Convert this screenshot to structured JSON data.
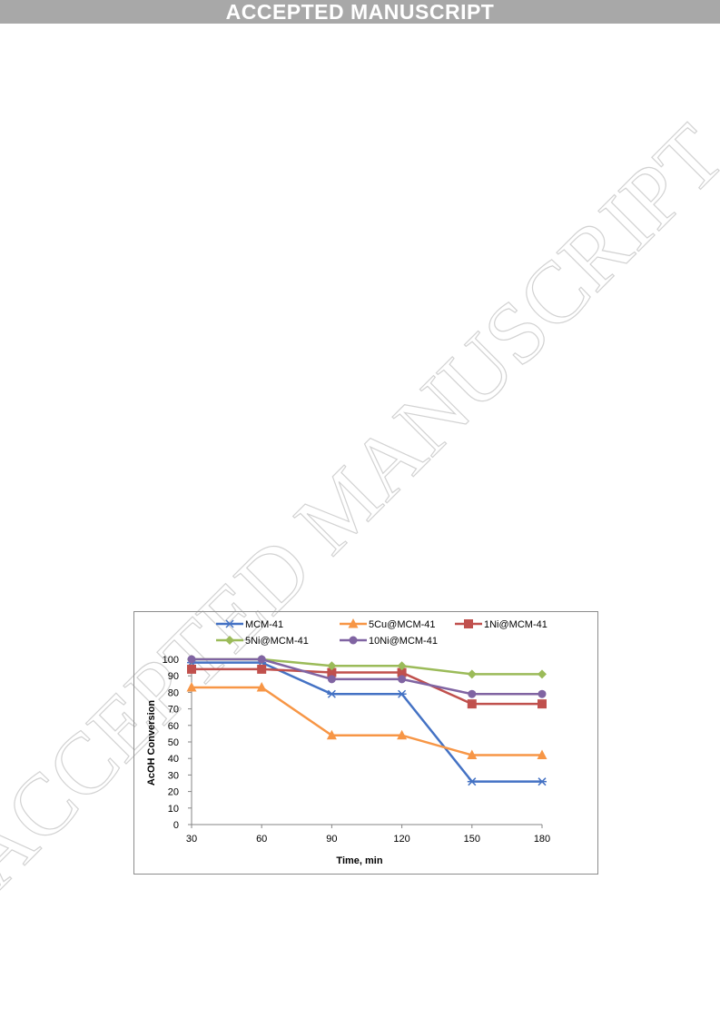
{
  "banner": {
    "text": "ACCEPTED MANUSCRIPT"
  },
  "watermark": {
    "text": "ACCEPTED MANUSCRIPT"
  },
  "colors": {
    "watermark": "#d2d2d2",
    "banner_bg": "#a8a8a8",
    "axis": "#868686",
    "frame": "#8c8c8c"
  },
  "chart_data": {
    "type": "line",
    "title": "",
    "xlabel": "Time, min",
    "ylabel": "AcOH Conversion",
    "x": [
      30,
      60,
      90,
      120,
      150,
      180
    ],
    "ylim": [
      0,
      100
    ],
    "yticks": [
      0,
      10,
      20,
      30,
      40,
      50,
      60,
      70,
      80,
      90,
      100
    ],
    "grid": false,
    "legend_position": "top",
    "series": [
      {
        "name": "MCM-41",
        "color": "#4472c4",
        "marker": "asterisk",
        "values": [
          98,
          98,
          79,
          79,
          26,
          26
        ]
      },
      {
        "name": "5Cu@MCM-41",
        "color": "#f79646",
        "marker": "triangle",
        "values": [
          83,
          83,
          54,
          54,
          42,
          42
        ]
      },
      {
        "name": "1Ni@MCM-41",
        "color": "#c0504d",
        "marker": "square",
        "values": [
          94,
          94,
          92,
          92,
          73,
          73
        ]
      },
      {
        "name": "5Ni@MCM-41",
        "color": "#9bbb59",
        "marker": "diamond",
        "values": [
          100,
          100,
          96,
          96,
          91,
          91
        ]
      },
      {
        "name": "10Ni@MCM-41",
        "color": "#8064a2",
        "marker": "circle",
        "values": [
          100,
          100,
          88,
          88,
          79,
          79
        ]
      }
    ]
  }
}
